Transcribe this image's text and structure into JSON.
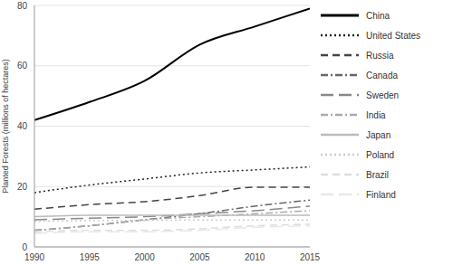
{
  "chart_data": {
    "type": "line",
    "y_label": "Planted Forests (millions of hectares)",
    "x": [
      1990,
      1995,
      2000,
      2005,
      2010,
      2015
    ],
    "xlim": [
      1990,
      2015
    ],
    "xticks": [
      1990,
      1995,
      2000,
      2005,
      2010,
      2015
    ],
    "ylim": [
      0,
      80
    ],
    "yticks": [
      0,
      20,
      40,
      60,
      80
    ],
    "grid": true,
    "legend": "right",
    "series": [
      {
        "name": "China",
        "color": "#000000",
        "line_style": "solid",
        "values": [
          42,
          48,
          55,
          67,
          73,
          79
        ]
      },
      {
        "name": "United States",
        "color": "#222222",
        "line_style": "dotted",
        "values": [
          18,
          20.5,
          22.5,
          24.5,
          25.5,
          26.5
        ]
      },
      {
        "name": "Russia",
        "color": "#444444",
        "line_style": "dashed",
        "values": [
          12.5,
          14,
          15,
          17,
          19.8,
          19.8
        ]
      },
      {
        "name": "Canada",
        "color": "#666666",
        "line_style": "dashdot",
        "values": [
          5.5,
          7,
          9,
          11,
          13.5,
          15.5
        ]
      },
      {
        "name": "Sweden",
        "color": "#888888",
        "line_style": "longdash",
        "values": [
          9,
          9.5,
          10,
          11,
          12,
          13.5
        ]
      },
      {
        "name": "India",
        "color": "#aaaaaa",
        "line_style": "dashdot",
        "values": [
          5.5,
          7,
          9,
          10,
          11,
          12
        ]
      },
      {
        "name": "Japan",
        "color": "#bbbbbb",
        "line_style": "solid",
        "values": [
          10,
          10.5,
          10.5,
          10.5,
          10.5,
          10.5
        ]
      },
      {
        "name": "Poland",
        "color": "#cccccc",
        "line_style": "dotted",
        "values": [
          8.5,
          8.7,
          8.8,
          8.9,
          8.9,
          8.9
        ]
      },
      {
        "name": "Brazil",
        "color": "#dddddd",
        "line_style": "dashed",
        "values": [
          5,
          5.5,
          5.5,
          6,
          7,
          7.5
        ]
      },
      {
        "name": "Finland",
        "color": "#e8e8e8",
        "line_style": "longdash",
        "values": [
          4.5,
          5,
          5,
          5.5,
          6.5,
          7
        ]
      }
    ]
  }
}
